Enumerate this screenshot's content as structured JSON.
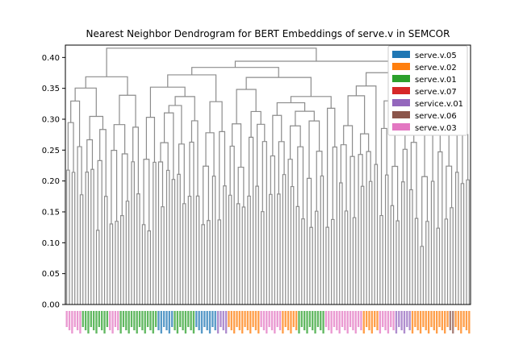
{
  "chart_data": {
    "type": "dendrogram",
    "title": "Nearest Neighbor Dendrogram for BERT Embeddings of serve.v in SEMCOR",
    "xlabel": "",
    "ylabel": "",
    "ylim": [
      0,
      0.42
    ],
    "y_ticks": [
      {
        "value": 0.0,
        "label": "0.00"
      },
      {
        "value": 0.05,
        "label": "0.05"
      },
      {
        "value": 0.1,
        "label": "0.10"
      },
      {
        "value": 0.15,
        "label": "0.15"
      },
      {
        "value": 0.2,
        "label": "0.20"
      },
      {
        "value": 0.25,
        "label": "0.25"
      },
      {
        "value": 0.3,
        "label": "0.30"
      },
      {
        "value": 0.35,
        "label": "0.35"
      },
      {
        "value": 0.4,
        "label": "0.40"
      }
    ],
    "grid": false,
    "legend_position": "top-right",
    "legend": [
      {
        "label": "serve.v.05",
        "color": "#1f77b4"
      },
      {
        "label": "serve.v.02",
        "color": "#ff7f0e"
      },
      {
        "label": "serve.v.01",
        "color": "#2ca02c"
      },
      {
        "label": "serve.v.07",
        "color": "#d62728"
      },
      {
        "label": "service.v.01",
        "color": "#9467bd"
      },
      {
        "label": "serve.v.06",
        "color": "#8c564b"
      },
      {
        "label": "serve.v.03",
        "color": "#e377c2"
      }
    ],
    "link_color": "#8c8c8c",
    "leaf_count": 150,
    "leaf_sense_runs": [
      {
        "sense": "serve.v.03",
        "count": 6
      },
      {
        "sense": "serve.v.01",
        "count": 10
      },
      {
        "sense": "serve.v.03",
        "count": 4
      },
      {
        "sense": "serve.v.01",
        "count": 14
      },
      {
        "sense": "serve.v.05",
        "count": 6
      },
      {
        "sense": "serve.v.01",
        "count": 8
      },
      {
        "sense": "serve.v.05",
        "count": 8
      },
      {
        "sense": "service.v.01",
        "count": 4
      },
      {
        "sense": "serve.v.02",
        "count": 12
      },
      {
        "sense": "serve.v.03",
        "count": 8
      },
      {
        "sense": "serve.v.02",
        "count": 6
      },
      {
        "sense": "serve.v.01",
        "count": 10
      },
      {
        "sense": "serve.v.03",
        "count": 14
      },
      {
        "sense": "serve.v.02",
        "count": 6
      },
      {
        "sense": "serve.v.03",
        "count": 6
      },
      {
        "sense": "service.v.01",
        "count": 6
      },
      {
        "sense": "serve.v.02",
        "count": 14
      },
      {
        "sense": "serve.v.06",
        "count": 2
      },
      {
        "sense": "serve.v.02",
        "count": 6
      }
    ],
    "max_height": 0.415
  }
}
